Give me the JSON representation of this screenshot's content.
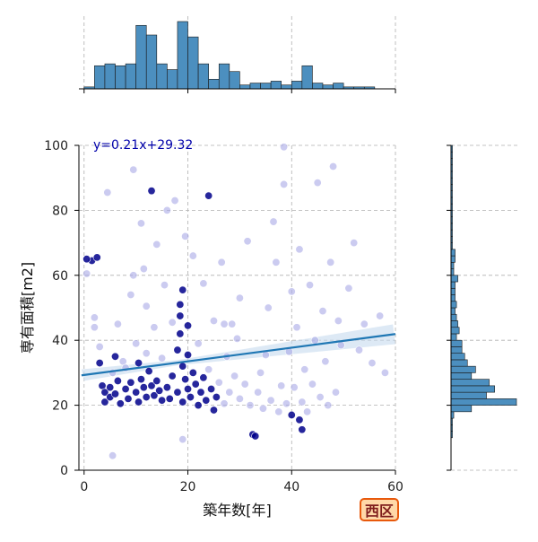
{
  "chart_data": {
    "type": "scatter",
    "title": "",
    "xlabel": "築年数[年]",
    "ylabel": "専有面積[m2]",
    "xlim": [
      -1,
      60
    ],
    "ylim": [
      0,
      100
    ],
    "xticks": [
      0,
      20,
      40,
      60
    ],
    "yticks": [
      0,
      20,
      40,
      60,
      80,
      100
    ],
    "grid": true,
    "badge": "西区",
    "regression": {
      "label": "y=0.21x+29.32",
      "slope": 0.21,
      "intercept": 29.32
    },
    "colors": {
      "point_light": "#a9a9e6",
      "point_dark": "#00008b",
      "regression_line": "#1f77b4",
      "confidence_band": "#c6dbef",
      "hist_fill": "#4c8fbf",
      "equation_text": "#0000aa"
    },
    "marginal_x": {
      "bin_width": 2,
      "bins": [
        {
          "x0": 0,
          "count": 1
        },
        {
          "x0": 2,
          "count": 12
        },
        {
          "x0": 4,
          "count": 13
        },
        {
          "x0": 6,
          "count": 12
        },
        {
          "x0": 8,
          "count": 13
        },
        {
          "x0": 10,
          "count": 33
        },
        {
          "x0": 12,
          "count": 28
        },
        {
          "x0": 14,
          "count": 13
        },
        {
          "x0": 16,
          "count": 10
        },
        {
          "x0": 18,
          "count": 35
        },
        {
          "x0": 20,
          "count": 27
        },
        {
          "x0": 22,
          "count": 13
        },
        {
          "x0": 24,
          "count": 5
        },
        {
          "x0": 26,
          "count": 13
        },
        {
          "x0": 28,
          "count": 9
        },
        {
          "x0": 30,
          "count": 2
        },
        {
          "x0": 32,
          "count": 3
        },
        {
          "x0": 34,
          "count": 3
        },
        {
          "x0": 36,
          "count": 4
        },
        {
          "x0": 38,
          "count": 2
        },
        {
          "x0": 40,
          "count": 4
        },
        {
          "x0": 42,
          "count": 12
        },
        {
          "x0": 44,
          "count": 3
        },
        {
          "x0": 46,
          "count": 2
        },
        {
          "x0": 48,
          "count": 3
        },
        {
          "x0": 50,
          "count": 1
        },
        {
          "x0": 52,
          "count": 1
        },
        {
          "x0": 54,
          "count": 1
        }
      ]
    },
    "marginal_y": {
      "bin_width": 2,
      "bins": [
        {
          "y0": 10,
          "count": 1
        },
        {
          "y0": 12,
          "count": 1
        },
        {
          "y0": 14,
          "count": 1
        },
        {
          "y0": 16,
          "count": 2
        },
        {
          "y0": 18,
          "count": 15
        },
        {
          "y0": 20,
          "count": 48
        },
        {
          "y0": 22,
          "count": 26
        },
        {
          "y0": 24,
          "count": 32
        },
        {
          "y0": 26,
          "count": 28
        },
        {
          "y0": 28,
          "count": 15
        },
        {
          "y0": 30,
          "count": 18
        },
        {
          "y0": 32,
          "count": 12
        },
        {
          "y0": 34,
          "count": 10
        },
        {
          "y0": 36,
          "count": 8
        },
        {
          "y0": 38,
          "count": 8
        },
        {
          "y0": 40,
          "count": 4
        },
        {
          "y0": 42,
          "count": 6
        },
        {
          "y0": 44,
          "count": 5
        },
        {
          "y0": 46,
          "count": 4
        },
        {
          "y0": 48,
          "count": 3
        },
        {
          "y0": 50,
          "count": 4
        },
        {
          "y0": 52,
          "count": 3
        },
        {
          "y0": 54,
          "count": 3
        },
        {
          "y0": 56,
          "count": 3
        },
        {
          "y0": 58,
          "count": 5
        },
        {
          "y0": 60,
          "count": 2
        },
        {
          "y0": 62,
          "count": 2
        },
        {
          "y0": 64,
          "count": 3
        },
        {
          "y0": 66,
          "count": 3
        },
        {
          "y0": 68,
          "count": 1
        },
        {
          "y0": 70,
          "count": 1
        },
        {
          "y0": 72,
          "count": 1
        },
        {
          "y0": 74,
          "count": 1
        },
        {
          "y0": 76,
          "count": 1
        },
        {
          "y0": 78,
          "count": 1
        },
        {
          "y0": 80,
          "count": 1
        },
        {
          "y0": 82,
          "count": 1
        },
        {
          "y0": 84,
          "count": 1
        },
        {
          "y0": 86,
          "count": 1
        },
        {
          "y0": 88,
          "count": 1
        },
        {
          "y0": 90,
          "count": 1
        },
        {
          "y0": 92,
          "count": 1
        },
        {
          "y0": 94,
          "count": 1
        },
        {
          "y0": 96,
          "count": 1
        },
        {
          "y0": 98,
          "count": 1
        }
      ]
    },
    "series": [
      {
        "x": 1.5,
        "y": 64.5,
        "dark": true
      },
      {
        "x": 0.5,
        "y": 60.5,
        "dark": false
      },
      {
        "x": 0.5,
        "y": 65,
        "dark": true
      },
      {
        "x": 2.5,
        "y": 65.5,
        "dark": true
      },
      {
        "x": 4.5,
        "y": 85.5,
        "dark": false
      },
      {
        "x": 5.5,
        "y": 4.5,
        "dark": false
      },
      {
        "x": 2,
        "y": 44,
        "dark": false
      },
      {
        "x": 2,
        "y": 47,
        "dark": false
      },
      {
        "x": 3,
        "y": 38,
        "dark": false
      },
      {
        "x": 3,
        "y": 33,
        "dark": true
      },
      {
        "x": 3.5,
        "y": 26,
        "dark": true
      },
      {
        "x": 4,
        "y": 24,
        "dark": true
      },
      {
        "x": 4,
        "y": 21,
        "dark": true
      },
      {
        "x": 5,
        "y": 25.5,
        "dark": true
      },
      {
        "x": 5,
        "y": 22.5,
        "dark": true
      },
      {
        "x": 5.5,
        "y": 30,
        "dark": false
      },
      {
        "x": 6,
        "y": 35,
        "dark": true
      },
      {
        "x": 6,
        "y": 23.5,
        "dark": true
      },
      {
        "x": 6.5,
        "y": 27.5,
        "dark": true
      },
      {
        "x": 6.5,
        "y": 45,
        "dark": false
      },
      {
        "x": 7,
        "y": 20.5,
        "dark": true
      },
      {
        "x": 7.5,
        "y": 33.5,
        "dark": false
      },
      {
        "x": 8,
        "y": 25,
        "dark": true
      },
      {
        "x": 8,
        "y": 31.5,
        "dark": false
      },
      {
        "x": 8.5,
        "y": 22,
        "dark": true
      },
      {
        "x": 9,
        "y": 27,
        "dark": true
      },
      {
        "x": 9,
        "y": 54,
        "dark": false
      },
      {
        "x": 9.5,
        "y": 92.5,
        "dark": false
      },
      {
        "x": 9.5,
        "y": 60,
        "dark": false
      },
      {
        "x": 10,
        "y": 24,
        "dark": true
      },
      {
        "x": 10,
        "y": 39,
        "dark": false
      },
      {
        "x": 10.5,
        "y": 21,
        "dark": true
      },
      {
        "x": 10.5,
        "y": 33,
        "dark": true
      },
      {
        "x": 11,
        "y": 28,
        "dark": true
      },
      {
        "x": 11,
        "y": 76,
        "dark": false
      },
      {
        "x": 11.5,
        "y": 25.5,
        "dark": true
      },
      {
        "x": 11.5,
        "y": 62,
        "dark": false
      },
      {
        "x": 12,
        "y": 22.5,
        "dark": true
      },
      {
        "x": 12,
        "y": 36,
        "dark": false
      },
      {
        "x": 12,
        "y": 50.5,
        "dark": false
      },
      {
        "x": 12.5,
        "y": 30.5,
        "dark": true
      },
      {
        "x": 13,
        "y": 86,
        "dark": true
      },
      {
        "x": 13,
        "y": 26,
        "dark": true
      },
      {
        "x": 13.5,
        "y": 23,
        "dark": true
      },
      {
        "x": 13.5,
        "y": 44,
        "dark": false
      },
      {
        "x": 14,
        "y": 27.5,
        "dark": true
      },
      {
        "x": 14,
        "y": 69.5,
        "dark": false
      },
      {
        "x": 14.5,
        "y": 24.5,
        "dark": true
      },
      {
        "x": 15,
        "y": 21.5,
        "dark": true
      },
      {
        "x": 15,
        "y": 34.5,
        "dark": false
      },
      {
        "x": 15.5,
        "y": 57,
        "dark": false
      },
      {
        "x": 16,
        "y": 25.5,
        "dark": true
      },
      {
        "x": 16,
        "y": 80,
        "dark": false
      },
      {
        "x": 16.5,
        "y": 22,
        "dark": true
      },
      {
        "x": 17,
        "y": 29,
        "dark": true
      },
      {
        "x": 17,
        "y": 45.5,
        "dark": false
      },
      {
        "x": 17.5,
        "y": 83,
        "dark": false
      },
      {
        "x": 18,
        "y": 24,
        "dark": true
      },
      {
        "x": 18,
        "y": 37,
        "dark": true
      },
      {
        "x": 18.5,
        "y": 42,
        "dark": true
      },
      {
        "x": 18.5,
        "y": 51,
        "dark": true
      },
      {
        "x": 18.5,
        "y": 47.5,
        "dark": true
      },
      {
        "x": 19,
        "y": 21,
        "dark": true
      },
      {
        "x": 19,
        "y": 32,
        "dark": true
      },
      {
        "x": 19,
        "y": 55.5,
        "dark": true
      },
      {
        "x": 19,
        "y": 9.5,
        "dark": false
      },
      {
        "x": 19.5,
        "y": 28,
        "dark": true
      },
      {
        "x": 19.5,
        "y": 72,
        "dark": false
      },
      {
        "x": 20,
        "y": 25,
        "dark": true
      },
      {
        "x": 20,
        "y": 35.5,
        "dark": true
      },
      {
        "x": 20,
        "y": 44.5,
        "dark": true
      },
      {
        "x": 20.5,
        "y": 22.5,
        "dark": true
      },
      {
        "x": 21,
        "y": 30,
        "dark": true
      },
      {
        "x": 21,
        "y": 66,
        "dark": false
      },
      {
        "x": 21.5,
        "y": 26.5,
        "dark": true
      },
      {
        "x": 22,
        "y": 20,
        "dark": true
      },
      {
        "x": 22,
        "y": 39,
        "dark": false
      },
      {
        "x": 22.5,
        "y": 24,
        "dark": true
      },
      {
        "x": 23,
        "y": 28.5,
        "dark": true
      },
      {
        "x": 23,
        "y": 57.5,
        "dark": false
      },
      {
        "x": 23.5,
        "y": 21.5,
        "dark": true
      },
      {
        "x": 24,
        "y": 84.5,
        "dark": true
      },
      {
        "x": 24,
        "y": 31,
        "dark": false
      },
      {
        "x": 24.5,
        "y": 25,
        "dark": true
      },
      {
        "x": 25,
        "y": 18.5,
        "dark": true
      },
      {
        "x": 25,
        "y": 46,
        "dark": false
      },
      {
        "x": 25.5,
        "y": 22.5,
        "dark": true
      },
      {
        "x": 26,
        "y": 27,
        "dark": false
      },
      {
        "x": 26.5,
        "y": 64,
        "dark": false
      },
      {
        "x": 27,
        "y": 20.5,
        "dark": false
      },
      {
        "x": 27,
        "y": 45,
        "dark": false
      },
      {
        "x": 27.5,
        "y": 35,
        "dark": false
      },
      {
        "x": 28,
        "y": 24,
        "dark": false
      },
      {
        "x": 28.5,
        "y": 45,
        "dark": false
      },
      {
        "x": 29,
        "y": 29,
        "dark": false
      },
      {
        "x": 29.5,
        "y": 40.5,
        "dark": false
      },
      {
        "x": 30,
        "y": 22,
        "dark": false
      },
      {
        "x": 30,
        "y": 53,
        "dark": false
      },
      {
        "x": 31,
        "y": 26.5,
        "dark": false
      },
      {
        "x": 31.5,
        "y": 70.5,
        "dark": false
      },
      {
        "x": 32,
        "y": 20,
        "dark": false
      },
      {
        "x": 32.5,
        "y": 11,
        "dark": true
      },
      {
        "x": 33,
        "y": 10.5,
        "dark": true
      },
      {
        "x": 33.5,
        "y": 24,
        "dark": false
      },
      {
        "x": 34,
        "y": 30,
        "dark": false
      },
      {
        "x": 34.5,
        "y": 19,
        "dark": false
      },
      {
        "x": 35,
        "y": 35.5,
        "dark": false
      },
      {
        "x": 35.5,
        "y": 50,
        "dark": false
      },
      {
        "x": 36,
        "y": 21.5,
        "dark": false
      },
      {
        "x": 36.5,
        "y": 76.5,
        "dark": false
      },
      {
        "x": 37,
        "y": 64,
        "dark": false
      },
      {
        "x": 37.5,
        "y": 18,
        "dark": false
      },
      {
        "x": 38,
        "y": 26,
        "dark": false
      },
      {
        "x": 38.5,
        "y": 88,
        "dark": false
      },
      {
        "x": 38.5,
        "y": 99.5,
        "dark": false
      },
      {
        "x": 39,
        "y": 20.5,
        "dark": false
      },
      {
        "x": 39.5,
        "y": 36.5,
        "dark": false
      },
      {
        "x": 40,
        "y": 17,
        "dark": true
      },
      {
        "x": 40,
        "y": 55,
        "dark": false
      },
      {
        "x": 40.5,
        "y": 25.5,
        "dark": false
      },
      {
        "x": 41,
        "y": 44,
        "dark": false
      },
      {
        "x": 41.5,
        "y": 15.5,
        "dark": true
      },
      {
        "x": 41.5,
        "y": 68,
        "dark": false
      },
      {
        "x": 42,
        "y": 21,
        "dark": false
      },
      {
        "x": 42,
        "y": 12.5,
        "dark": true
      },
      {
        "x": 42.5,
        "y": 31,
        "dark": false
      },
      {
        "x": 43,
        "y": 18,
        "dark": false
      },
      {
        "x": 43.5,
        "y": 57,
        "dark": false
      },
      {
        "x": 44,
        "y": 26.5,
        "dark": false
      },
      {
        "x": 44.5,
        "y": 40,
        "dark": false
      },
      {
        "x": 45,
        "y": 88.5,
        "dark": false
      },
      {
        "x": 45.5,
        "y": 22.5,
        "dark": false
      },
      {
        "x": 46,
        "y": 49,
        "dark": false
      },
      {
        "x": 46.5,
        "y": 33.5,
        "dark": false
      },
      {
        "x": 47,
        "y": 20,
        "dark": false
      },
      {
        "x": 47.5,
        "y": 64,
        "dark": false
      },
      {
        "x": 48,
        "y": 93.5,
        "dark": false
      },
      {
        "x": 48.5,
        "y": 24,
        "dark": false
      },
      {
        "x": 49,
        "y": 46,
        "dark": false
      },
      {
        "x": 49.5,
        "y": 38.5,
        "dark": false
      },
      {
        "x": 51,
        "y": 56,
        "dark": false
      },
      {
        "x": 52,
        "y": 70,
        "dark": false
      },
      {
        "x": 53,
        "y": 37,
        "dark": false
      },
      {
        "x": 54,
        "y": 45,
        "dark": false
      },
      {
        "x": 55.5,
        "y": 33,
        "dark": false
      },
      {
        "x": 57,
        "y": 47.5,
        "dark": false
      },
      {
        "x": 58,
        "y": 30,
        "dark": false
      }
    ]
  }
}
